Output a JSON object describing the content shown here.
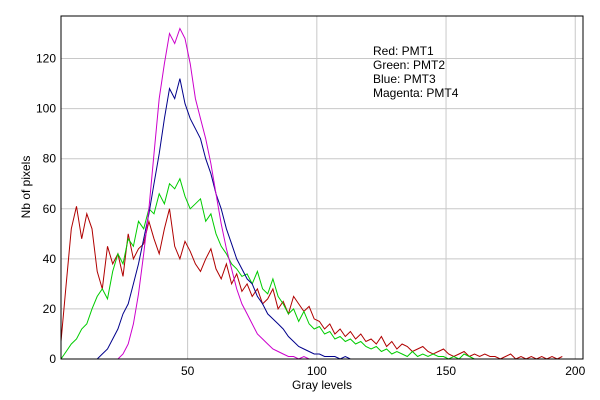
{
  "chart_data": {
    "type": "line",
    "xlabel": "Gray levels",
    "ylabel": "Nb of pixels",
    "xlim": [
      1,
      203
    ],
    "ylim": [
      0,
      137
    ],
    "xticks": [
      50,
      100,
      150,
      200
    ],
    "yticks": [
      0,
      20,
      40,
      60,
      80,
      100,
      120
    ],
    "grid": true,
    "legend_lines": [
      "Red: PMT1",
      "Green: PMT2",
      "Blue: PMT3",
      "Magenta: PMT4"
    ],
    "legend_position": "top-right",
    "series": [
      {
        "name": "PMT1",
        "color": "#b00000",
        "x": [
          1,
          3,
          5,
          7,
          9,
          11,
          13,
          15,
          17,
          19,
          21,
          23,
          25,
          27,
          29,
          31,
          33,
          35,
          37,
          39,
          41,
          43,
          45,
          47,
          49,
          51,
          53,
          55,
          57,
          59,
          61,
          63,
          65,
          67,
          69,
          71,
          73,
          75,
          77,
          79,
          81,
          83,
          85,
          87,
          89,
          91,
          93,
          95,
          97,
          99,
          101,
          103,
          105,
          107,
          109,
          111,
          113,
          115,
          117,
          119,
          121,
          123,
          125,
          127,
          129,
          131,
          133,
          135,
          137,
          139,
          141,
          143,
          145,
          147,
          149,
          151,
          153,
          155,
          157,
          159,
          161,
          163,
          165,
          167,
          169,
          171,
          173,
          175,
          177,
          179,
          181,
          183,
          185,
          187,
          189,
          191,
          193,
          195
        ],
        "values": [
          7,
          30,
          52,
          61,
          48,
          58,
          52,
          35,
          28,
          45,
          38,
          42,
          33,
          50,
          40,
          44,
          46,
          55,
          48,
          42,
          52,
          60,
          45,
          40,
          47,
          43,
          38,
          35,
          40,
          44,
          36,
          32,
          38,
          30,
          34,
          27,
          30,
          25,
          28,
          22,
          24,
          28,
          20,
          23,
          18,
          25,
          22,
          19,
          21,
          16,
          15,
          12,
          14,
          10,
          12,
          9,
          11,
          8,
          10,
          7,
          8,
          6,
          9,
          5,
          7,
          4,
          6,
          5,
          3,
          4,
          5,
          3,
          2,
          3,
          4,
          2,
          1,
          2,
          3,
          1,
          2,
          1,
          2,
          1,
          1,
          0,
          1,
          2,
          0,
          1,
          0,
          1,
          0,
          1,
          0,
          1,
          0,
          1
        ]
      },
      {
        "name": "PMT2",
        "color": "#00cc00",
        "x": [
          1,
          3,
          5,
          7,
          9,
          11,
          13,
          15,
          17,
          19,
          21,
          23,
          25,
          27,
          29,
          31,
          33,
          35,
          37,
          39,
          41,
          43,
          45,
          47,
          49,
          51,
          53,
          55,
          57,
          59,
          61,
          63,
          65,
          67,
          69,
          71,
          73,
          75,
          77,
          79,
          81,
          83,
          85,
          87,
          89,
          91,
          93,
          95,
          97,
          99,
          101,
          103,
          105,
          107,
          109,
          111,
          113,
          115,
          117,
          119,
          121,
          123,
          125,
          127,
          129,
          131,
          133,
          135,
          137,
          139,
          141,
          143,
          145,
          147,
          149,
          151,
          153,
          155,
          157,
          159,
          161
        ],
        "values": [
          0,
          3,
          6,
          8,
          12,
          14,
          20,
          25,
          28,
          24,
          35,
          42,
          38,
          48,
          45,
          55,
          52,
          60,
          58,
          66,
          62,
          70,
          68,
          72,
          65,
          60,
          62,
          64,
          55,
          58,
          50,
          45,
          42,
          38,
          36,
          33,
          34,
          30,
          35,
          28,
          26,
          32,
          25,
          22,
          18,
          20,
          15,
          19,
          14,
          12,
          13,
          10,
          11,
          8,
          9,
          7,
          8,
          6,
          7,
          5,
          4,
          5,
          3,
          4,
          2,
          3,
          2,
          1,
          3,
          1,
          2,
          1,
          2,
          1,
          1,
          0,
          1,
          0,
          2,
          1,
          0
        ]
      },
      {
        "name": "PMT3",
        "color": "#00008b",
        "x": [
          1,
          3,
          5,
          7,
          9,
          11,
          13,
          15,
          17,
          19,
          21,
          23,
          25,
          27,
          29,
          31,
          33,
          35,
          37,
          39,
          41,
          43,
          45,
          47,
          49,
          51,
          53,
          55,
          57,
          59,
          61,
          63,
          65,
          67,
          69,
          71,
          73,
          75,
          77,
          79,
          81,
          83,
          85,
          87,
          89,
          91,
          93,
          95,
          97,
          99,
          101,
          103,
          105,
          107,
          109,
          111,
          113,
          115
        ],
        "values": [
          0,
          0,
          0,
          0,
          0,
          0,
          0,
          0,
          2,
          4,
          8,
          12,
          18,
          22,
          30,
          38,
          48,
          58,
          70,
          82,
          96,
          108,
          104,
          112,
          102,
          96,
          92,
          88,
          80,
          74,
          66,
          60,
          52,
          46,
          40,
          36,
          32,
          30,
          25,
          22,
          18,
          16,
          14,
          12,
          9,
          7,
          5,
          4,
          3,
          2,
          2,
          1,
          1,
          1,
          0,
          1,
          0,
          0
        ]
      },
      {
        "name": "PMT4",
        "color": "#cc00cc",
        "x": [
          1,
          3,
          5,
          7,
          9,
          11,
          13,
          15,
          17,
          19,
          21,
          23,
          25,
          27,
          29,
          31,
          33,
          35,
          37,
          39,
          41,
          43,
          45,
          47,
          49,
          51,
          53,
          55,
          57,
          59,
          61,
          63,
          65,
          67,
          69,
          71,
          73,
          75,
          77,
          79,
          81,
          83,
          85,
          87,
          89,
          91,
          93,
          95,
          97,
          99,
          101,
          103,
          105,
          107,
          109,
          111
        ],
        "values": [
          0,
          0,
          0,
          0,
          0,
          0,
          0,
          0,
          0,
          0,
          0,
          0,
          2,
          6,
          14,
          26,
          42,
          60,
          82,
          104,
          118,
          130,
          126,
          132,
          128,
          118,
          104,
          96,
          88,
          78,
          66,
          54,
          44,
          36,
          28,
          22,
          18,
          14,
          10,
          8,
          6,
          4,
          3,
          2,
          1,
          1,
          0,
          1,
          0,
          0,
          0,
          0,
          0,
          0,
          0,
          0
        ]
      }
    ]
  }
}
